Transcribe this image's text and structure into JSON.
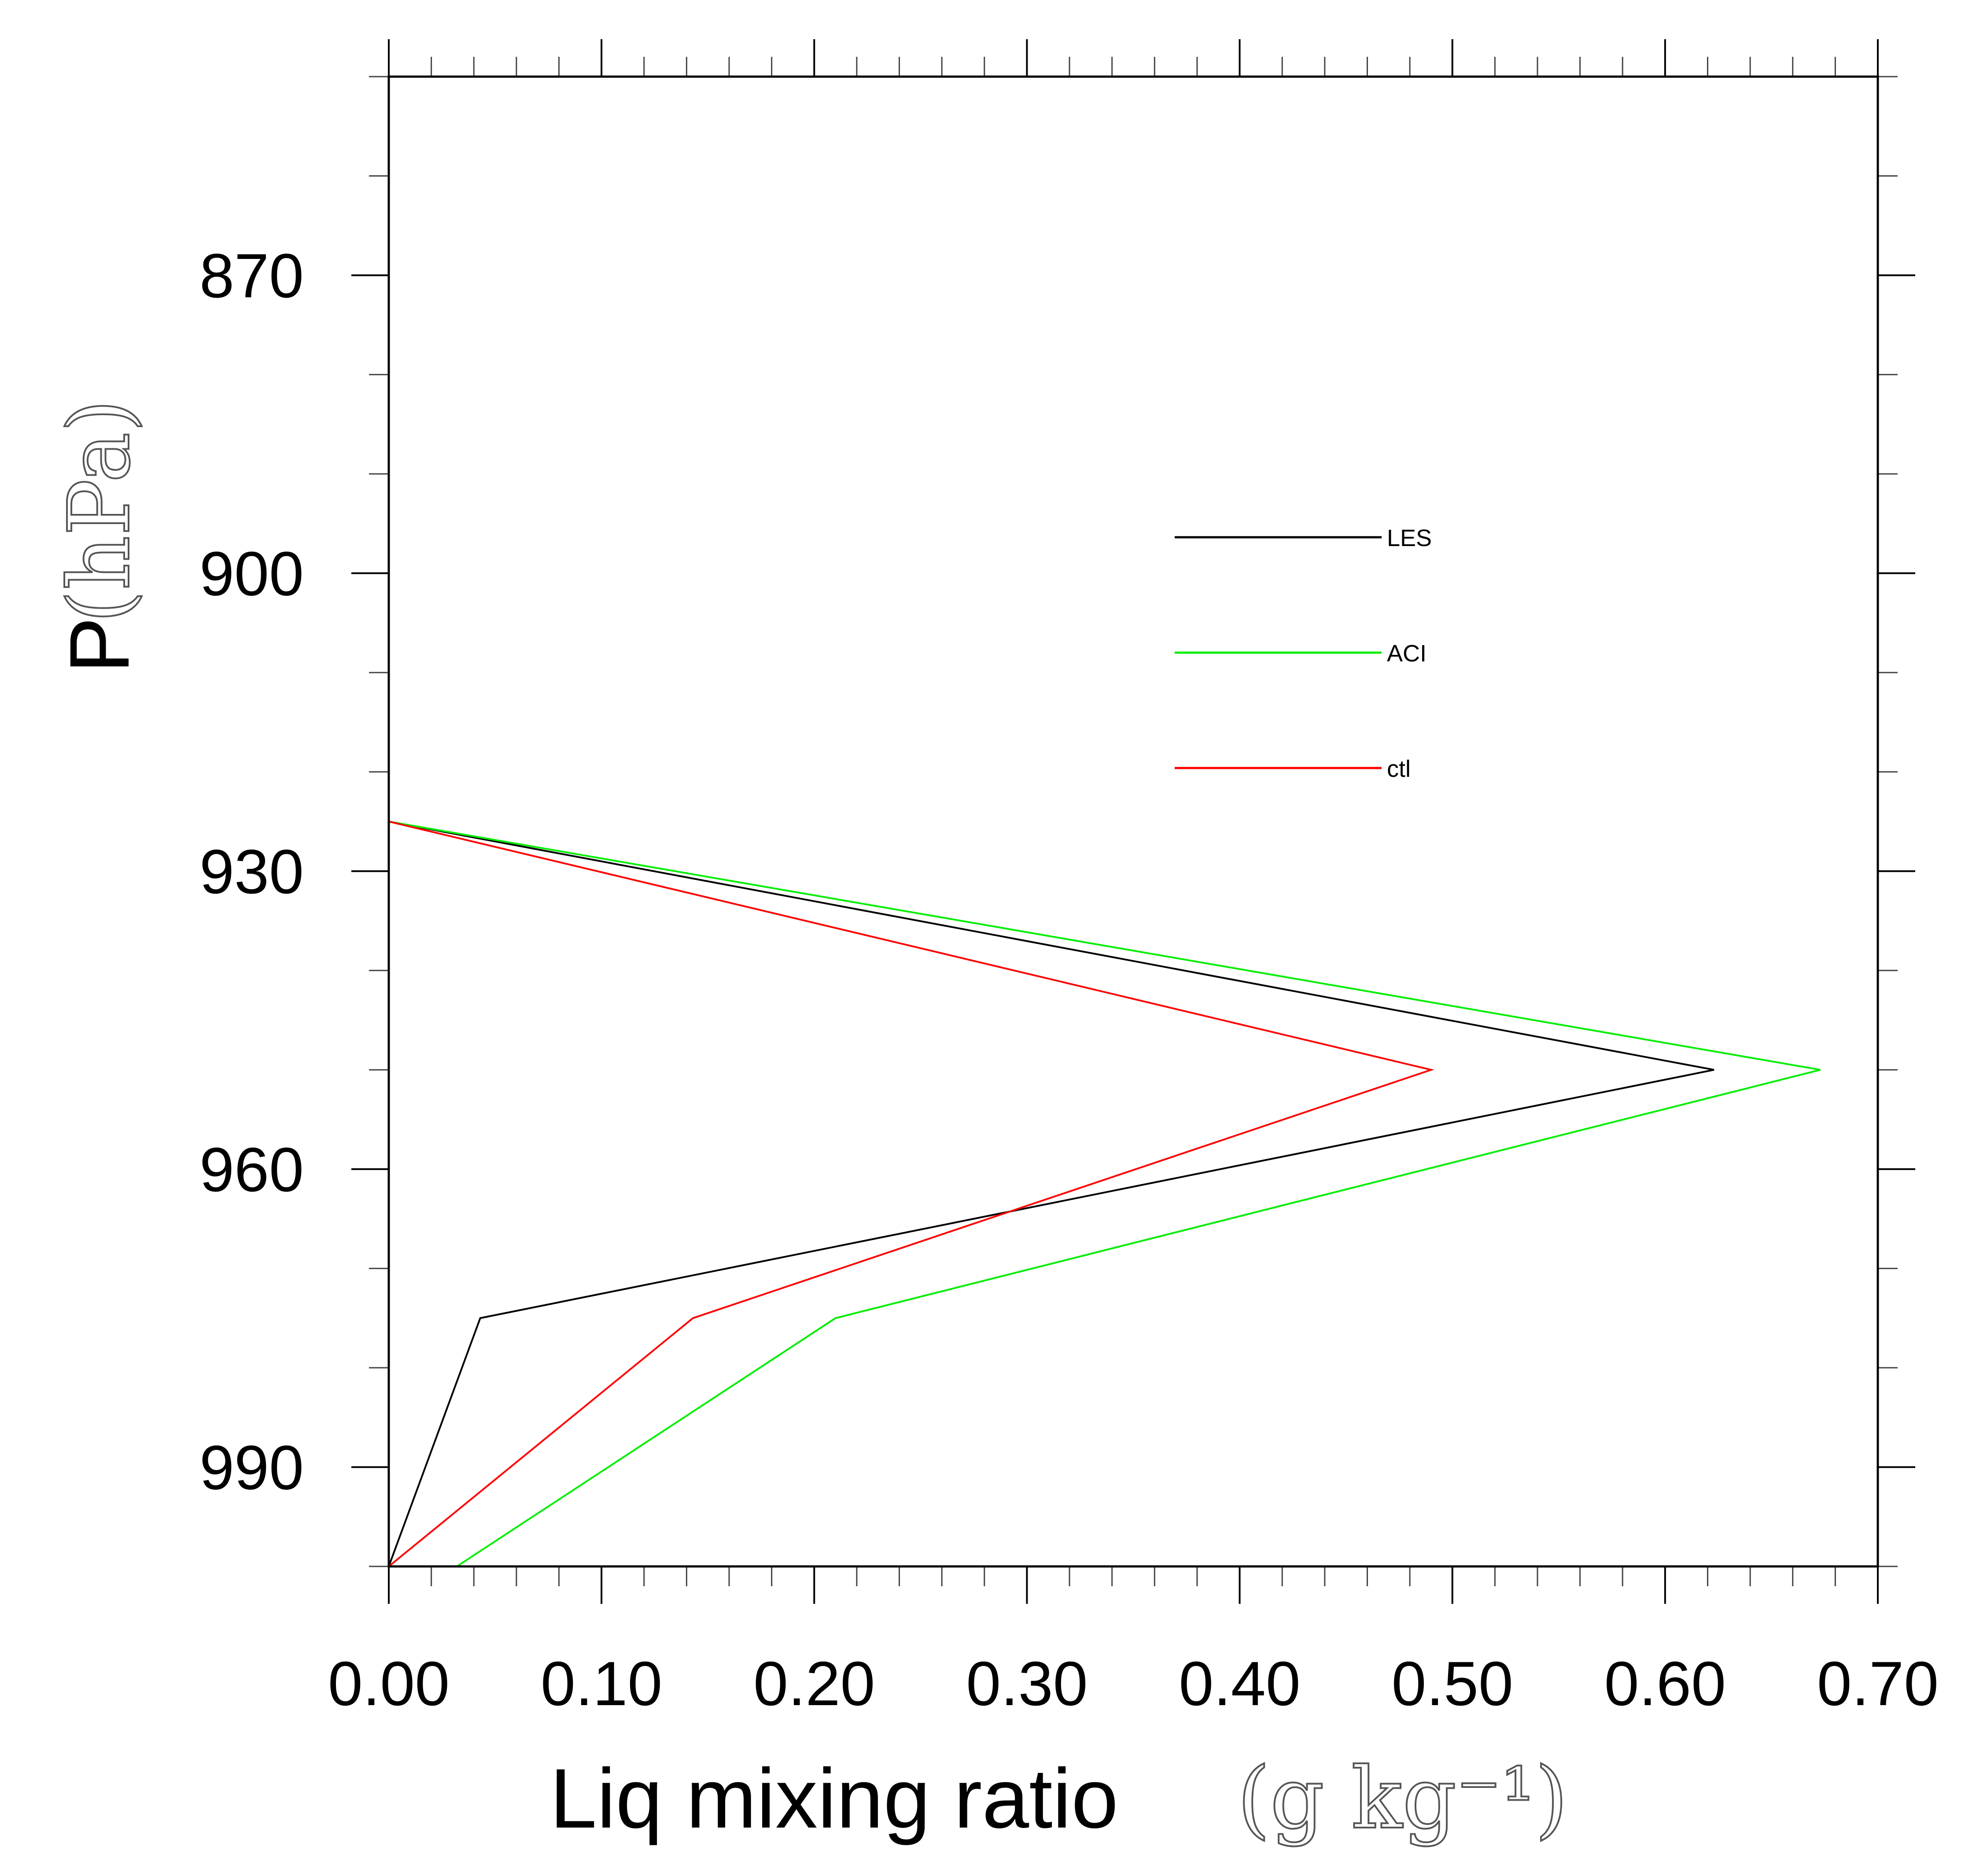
{
  "chart_data": {
    "type": "line",
    "orientation": "profile",
    "xlabel": "Liq mixing ratio",
    "xunit_text": "(g  kg⁻¹)",
    "ylabel": "P",
    "yunit_text": "(hPa)",
    "xlim": [
      0.0,
      0.7
    ],
    "ylim": [
      850,
      1000
    ],
    "y_inverted": true,
    "x_ticks": [
      "0.00",
      "0.10",
      "0.20",
      "0.30",
      "0.40",
      "0.50",
      "0.60",
      "0.70"
    ],
    "y_ticks": [
      "870",
      "900",
      "930",
      "960",
      "990"
    ],
    "legend_position": "upper-right inside",
    "series": [
      {
        "name": "LES",
        "color": "#000000",
        "points": [
          [
            0.0,
            925
          ],
          [
            0.623,
            950
          ],
          [
            0.043,
            975
          ],
          [
            0.0,
            1000
          ]
        ]
      },
      {
        "name": "ACI",
        "color": "#00ee00",
        "points": [
          [
            0.0,
            925
          ],
          [
            0.673,
            950
          ],
          [
            0.21,
            975
          ],
          [
            0.032,
            1000
          ]
        ]
      },
      {
        "name": "ctl",
        "color": "#ff0000",
        "points": [
          [
            0.0,
            925
          ],
          [
            0.49,
            950
          ],
          [
            0.143,
            975
          ],
          [
            0.0,
            1000
          ]
        ]
      }
    ]
  }
}
